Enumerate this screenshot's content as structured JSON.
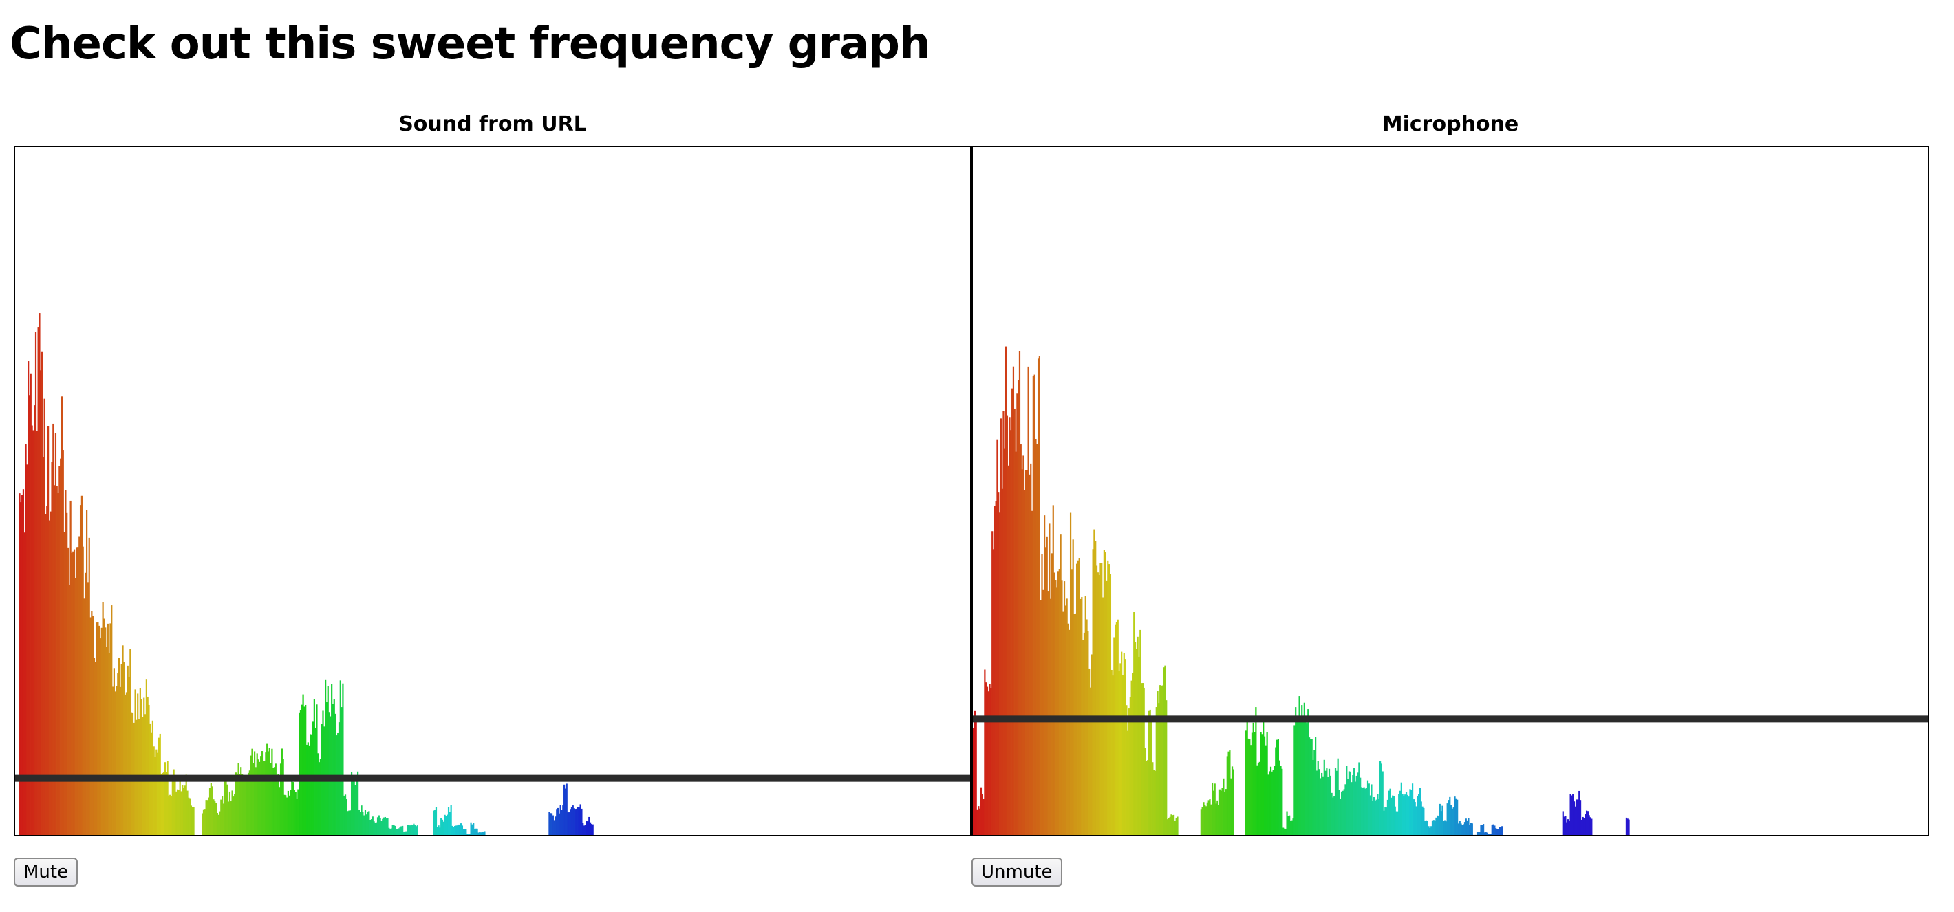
{
  "page": {
    "title": "Check out this sweet frequency graph"
  },
  "panels": [
    {
      "label": "Sound from URL",
      "button_label": "Mute",
      "chart_data": {
        "type": "bar",
        "bins": 256,
        "ylim": [
          0,
          255
        ],
        "threshold": 21,
        "segments": [
          [
            0,
            1,
            0,
            210
          ],
          [
            1,
            3,
            120,
            130
          ],
          [
            3,
            8,
            150,
            175
          ],
          [
            8,
            14,
            125,
            145
          ],
          [
            14,
            20,
            100,
            115
          ],
          [
            20,
            26,
            72,
            90
          ],
          [
            26,
            31,
            55,
            66
          ],
          [
            31,
            36,
            40,
            55
          ],
          [
            36,
            40,
            20,
            38
          ],
          [
            40,
            44,
            12,
            28
          ],
          [
            44,
            48,
            4,
            20
          ],
          [
            48,
            50,
            0,
            0
          ],
          [
            50,
            55,
            4,
            18
          ],
          [
            55,
            62,
            12,
            26
          ],
          [
            62,
            70,
            22,
            40
          ],
          [
            70,
            76,
            12,
            30
          ],
          [
            76,
            82,
            28,
            48
          ],
          [
            82,
            88,
            32,
            52
          ],
          [
            88,
            94,
            8,
            24
          ],
          [
            94,
            100,
            2,
            10
          ],
          [
            100,
            108,
            0,
            4
          ],
          [
            108,
            112,
            0,
            0
          ],
          [
            112,
            120,
            3,
            13
          ],
          [
            120,
            126,
            0,
            5
          ],
          [
            126,
            143,
            0,
            0
          ],
          [
            143,
            147,
            3,
            12
          ],
          [
            147,
            150,
            8,
            22
          ],
          [
            150,
            155,
            3,
            10
          ],
          [
            155,
            256,
            0,
            0
          ]
        ]
      }
    },
    {
      "label": "Microphone",
      "button_label": "Unmute",
      "chart_data": {
        "type": "bar",
        "bins": 256,
        "ylim": [
          0,
          255
        ],
        "threshold": 43,
        "segments": [
          [
            0,
            1,
            40,
            55
          ],
          [
            1,
            3,
            10,
            25
          ],
          [
            3,
            5,
            30,
            60
          ],
          [
            5,
            8,
            110,
            150
          ],
          [
            8,
            13,
            125,
            170
          ],
          [
            13,
            18,
            135,
            160
          ],
          [
            18,
            22,
            100,
            135
          ],
          [
            22,
            25,
            80,
            110
          ],
          [
            25,
            29,
            85,
            112
          ],
          [
            29,
            32,
            60,
            80
          ],
          [
            32,
            37,
            85,
            110
          ],
          [
            37,
            40,
            50,
            90
          ],
          [
            40,
            43,
            45,
            75
          ],
          [
            43,
            45,
            70,
            78
          ],
          [
            45,
            52,
            20,
            60
          ],
          [
            52,
            55,
            2,
            8
          ],
          [
            55,
            61,
            0,
            0
          ],
          [
            61,
            65,
            8,
            20
          ],
          [
            65,
            70,
            12,
            30
          ],
          [
            70,
            73,
            0,
            0
          ],
          [
            73,
            77,
            20,
            45
          ],
          [
            77,
            83,
            20,
            40
          ],
          [
            83,
            86,
            2,
            10
          ],
          [
            86,
            90,
            30,
            48
          ],
          [
            90,
            96,
            20,
            35
          ],
          [
            96,
            110,
            8,
            25
          ],
          [
            110,
            120,
            8,
            20
          ],
          [
            120,
            130,
            2,
            15
          ],
          [
            130,
            138,
            0,
            6
          ],
          [
            138,
            142,
            0,
            4
          ],
          [
            142,
            158,
            0,
            0
          ],
          [
            158,
            166,
            4,
            16
          ],
          [
            166,
            175,
            0,
            0
          ],
          [
            175,
            176,
            6,
            7
          ],
          [
            176,
            256,
            0,
            0
          ]
        ]
      }
    }
  ]
}
